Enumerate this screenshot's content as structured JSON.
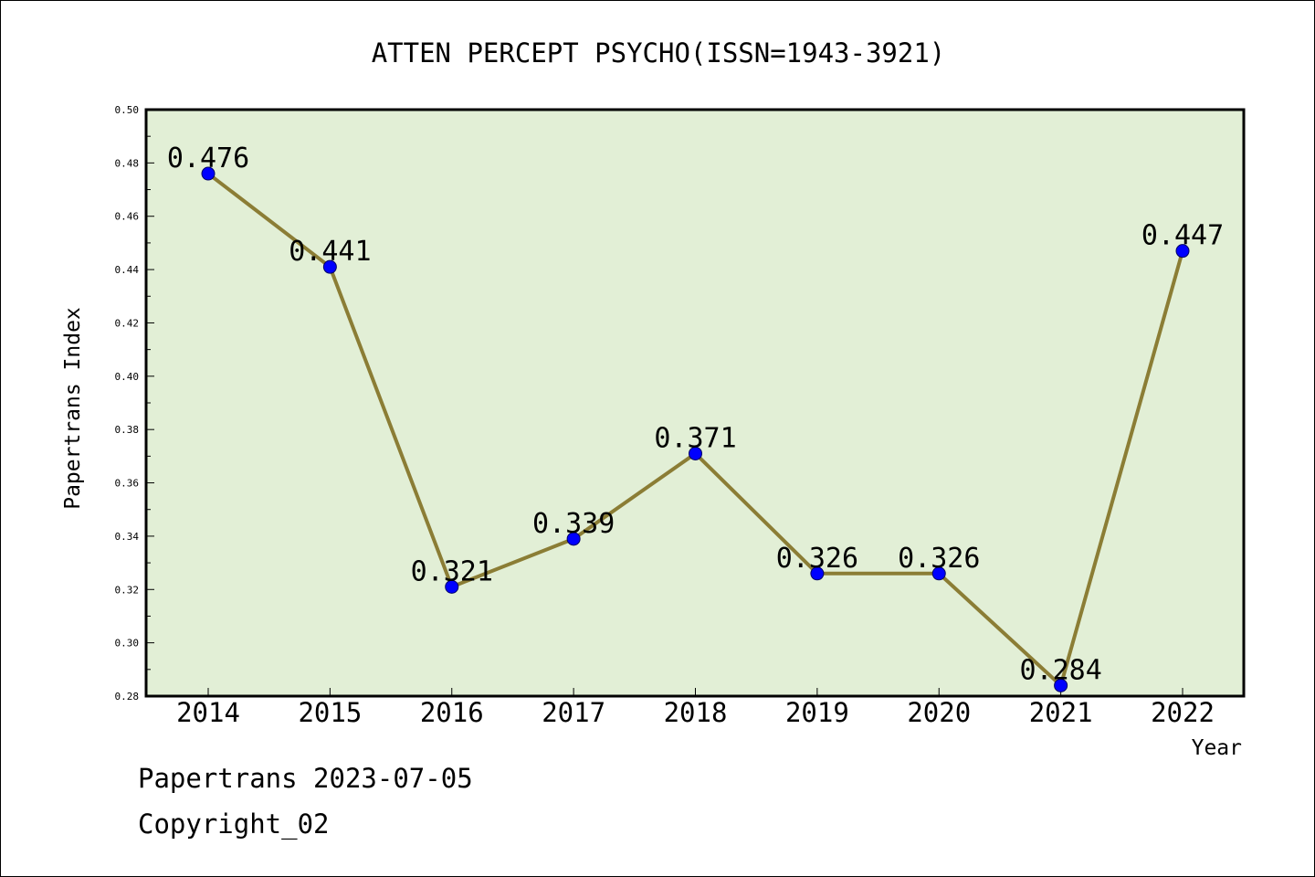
{
  "chart_data": {
    "type": "line",
    "title": "ATTEN PERCEPT PSYCHO(ISSN=1943-3921)",
    "xlabel": "Year",
    "ylabel": "Papertrans Index",
    "categories": [
      "2014",
      "2015",
      "2016",
      "2017",
      "2018",
      "2019",
      "2020",
      "2021",
      "2022"
    ],
    "values": [
      0.476,
      0.441,
      0.321,
      0.339,
      0.371,
      0.326,
      0.326,
      0.284,
      0.447
    ],
    "data_labels": [
      "0.476",
      "0.441",
      "0.321",
      "0.339",
      "0.371",
      "0.326",
      "0.326",
      "0.284",
      "0.447"
    ],
    "ylim": [
      0.28,
      0.5
    ],
    "yticks": [
      "0.28",
      "0.30",
      "0.32",
      "0.34",
      "0.36",
      "0.38",
      "0.40",
      "0.42",
      "0.44",
      "0.46",
      "0.48",
      "0.50"
    ],
    "grid": false,
    "colors": {
      "plot_background": "#e2efd6",
      "line": "#8b7d35",
      "marker": "#0000ff"
    }
  },
  "footer": {
    "date_line": "Papertrans 2023-07-05",
    "copyright_line": "Copyright_02"
  }
}
